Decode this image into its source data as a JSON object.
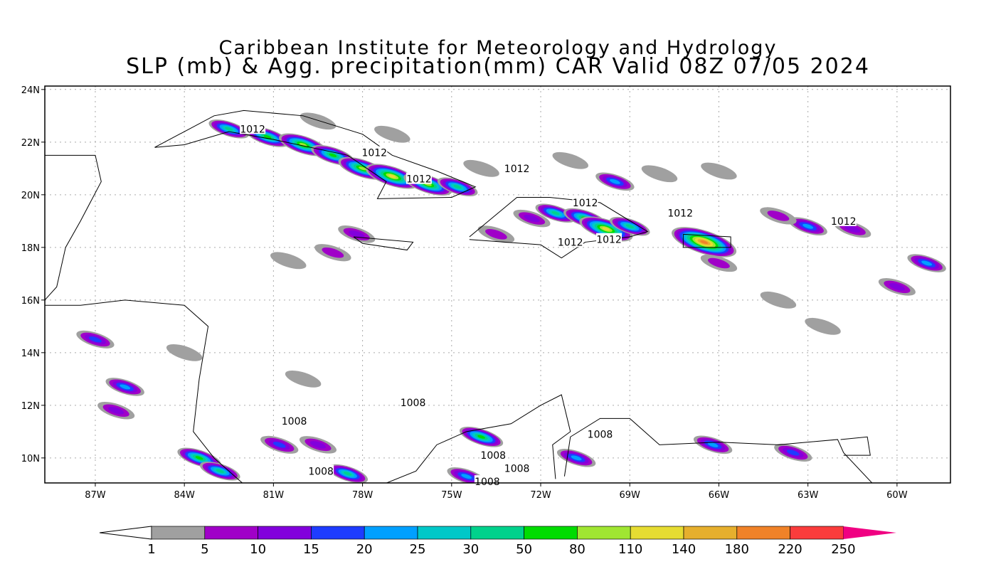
{
  "title_line1": "Caribbean Institute for Meteorology and Hydrology",
  "title_line2": "SLP (mb) & Agg. precipitation(mm) CAR Valid 08Z 07/05 2024",
  "map": {
    "lon_range": [
      -88.7,
      -58.2
    ],
    "lat_range": [
      9.05,
      24.13
    ],
    "lat_ticks": [
      {
        "v": 24,
        "label": "24N"
      },
      {
        "v": 22,
        "label": "22N"
      },
      {
        "v": 20,
        "label": "20N"
      },
      {
        "v": 18,
        "label": "18N"
      },
      {
        "v": 16,
        "label": "16N"
      },
      {
        "v": 14,
        "label": "14N"
      },
      {
        "v": 12,
        "label": "12N"
      },
      {
        "v": 10,
        "label": "10N"
      }
    ],
    "lon_ticks": [
      {
        "v": -87,
        "label": "87W"
      },
      {
        "v": -84,
        "label": "84W"
      },
      {
        "v": -81,
        "label": "81W"
      },
      {
        "v": -78,
        "label": "78W"
      },
      {
        "v": -75,
        "label": "75W"
      },
      {
        "v": -72,
        "label": "72W"
      },
      {
        "v": -69,
        "label": "69W"
      },
      {
        "v": -66,
        "label": "66W"
      },
      {
        "v": -63,
        "label": "63W"
      },
      {
        "v": -60,
        "label": "60W"
      }
    ],
    "isobar_labels": [
      {
        "text": "1012",
        "lon": -81.7,
        "lat": 22.5
      },
      {
        "text": "1012",
        "lon": -77.6,
        "lat": 21.6
      },
      {
        "text": "1012",
        "lon": -76.1,
        "lat": 20.6
      },
      {
        "text": "1012",
        "lon": -72.8,
        "lat": 21.0
      },
      {
        "text": "1012",
        "lon": -70.5,
        "lat": 19.7
      },
      {
        "text": "1012",
        "lon": -67.3,
        "lat": 19.3
      },
      {
        "text": "1012",
        "lon": -61.8,
        "lat": 19.0
      },
      {
        "text": "1012",
        "lon": -71.0,
        "lat": 18.2
      },
      {
        "text": "1012",
        "lon": -69.7,
        "lat": 18.3
      },
      {
        "text": "1008",
        "lon": -80.3,
        "lat": 11.4
      },
      {
        "text": "1008",
        "lon": -76.3,
        "lat": 12.1
      },
      {
        "text": "1008",
        "lon": -79.4,
        "lat": 9.5
      },
      {
        "text": "1008",
        "lon": -73.6,
        "lat": 10.1
      },
      {
        "text": "1008",
        "lon": -72.8,
        "lat": 9.6
      },
      {
        "text": "1008",
        "lon": -73.8,
        "lat": 9.1
      },
      {
        "text": "1008",
        "lon": -70.0,
        "lat": 10.9
      }
    ],
    "rain_cells": [
      {
        "lon": -82.5,
        "lat": 22.5,
        "mm": 30
      },
      {
        "lon": -81.2,
        "lat": 22.2,
        "mm": 50
      },
      {
        "lon": -80.0,
        "lat": 21.9,
        "mm": 80
      },
      {
        "lon": -79.0,
        "lat": 21.5,
        "mm": 50
      },
      {
        "lon": -78.0,
        "lat": 21.0,
        "mm": 80
      },
      {
        "lon": -77.0,
        "lat": 20.7,
        "mm": 110
      },
      {
        "lon": -75.8,
        "lat": 20.4,
        "mm": 80
      },
      {
        "lon": -74.8,
        "lat": 20.3,
        "mm": 30
      },
      {
        "lon": -79.5,
        "lat": 22.8,
        "mm": 3
      },
      {
        "lon": -77.0,
        "lat": 22.3,
        "mm": 3
      },
      {
        "lon": -74.0,
        "lat": 21.0,
        "mm": 3
      },
      {
        "lon": -71.0,
        "lat": 21.3,
        "mm": 3
      },
      {
        "lon": -69.5,
        "lat": 20.5,
        "mm": 20
      },
      {
        "lon": -68.0,
        "lat": 20.8,
        "mm": 3
      },
      {
        "lon": -66.0,
        "lat": 20.9,
        "mm": 3
      },
      {
        "lon": -71.5,
        "lat": 19.3,
        "mm": 30
      },
      {
        "lon": -70.5,
        "lat": 19.1,
        "mm": 50
      },
      {
        "lon": -69.8,
        "lat": 18.7,
        "mm": 110
      },
      {
        "lon": -69.0,
        "lat": 18.8,
        "mm": 30
      },
      {
        "lon": -72.3,
        "lat": 19.1,
        "mm": 10
      },
      {
        "lon": -73.5,
        "lat": 18.5,
        "mm": 7
      },
      {
        "lon": -66.5,
        "lat": 18.2,
        "mm": 180
      },
      {
        "lon": -63.0,
        "lat": 18.8,
        "mm": 20
      },
      {
        "lon": -61.5,
        "lat": 18.7,
        "mm": 10
      },
      {
        "lon": -64.0,
        "lat": 19.2,
        "mm": 7
      },
      {
        "lon": -59.0,
        "lat": 17.4,
        "mm": 20
      },
      {
        "lon": -60.0,
        "lat": 16.5,
        "mm": 10
      },
      {
        "lon": -78.2,
        "lat": 18.5,
        "mm": 10
      },
      {
        "lon": -80.5,
        "lat": 17.5,
        "mm": 3
      },
      {
        "lon": -79.0,
        "lat": 17.8,
        "mm": 7
      },
      {
        "lon": -86.0,
        "lat": 12.7,
        "mm": 20
      },
      {
        "lon": -86.3,
        "lat": 11.8,
        "mm": 10
      },
      {
        "lon": -87.0,
        "lat": 14.5,
        "mm": 15
      },
      {
        "lon": -83.5,
        "lat": 10.0,
        "mm": 50
      },
      {
        "lon": -82.8,
        "lat": 9.5,
        "mm": 30
      },
      {
        "lon": -80.8,
        "lat": 10.5,
        "mm": 15
      },
      {
        "lon": -79.5,
        "lat": 10.5,
        "mm": 10
      },
      {
        "lon": -78.5,
        "lat": 9.4,
        "mm": 30
      },
      {
        "lon": -74.0,
        "lat": 10.8,
        "mm": 50
      },
      {
        "lon": -74.5,
        "lat": 9.3,
        "mm": 20
      },
      {
        "lon": -70.8,
        "lat": 10.0,
        "mm": 20
      },
      {
        "lon": -66.2,
        "lat": 10.5,
        "mm": 20
      },
      {
        "lon": -63.5,
        "lat": 10.2,
        "mm": 15
      },
      {
        "lon": -84.0,
        "lat": 14.0,
        "mm": 3
      },
      {
        "lon": -80.0,
        "lat": 13.0,
        "mm": 3
      },
      {
        "lon": -62.5,
        "lat": 15.0,
        "mm": 3
      },
      {
        "lon": -64.0,
        "lat": 16.0,
        "mm": 3
      },
      {
        "lon": -66.0,
        "lat": 17.4,
        "mm": 7
      }
    ]
  },
  "colorbar": {
    "labels": [
      "1",
      "5",
      "10",
      "15",
      "20",
      "25",
      "30",
      "50",
      "80",
      "110",
      "140",
      "180",
      "220",
      "250"
    ],
    "colors": [
      "#a0a0a0",
      "#a000c8",
      "#8200dc",
      "#1e3cff",
      "#00a0ff",
      "#00c8c8",
      "#00d28c",
      "#00dc00",
      "#a0e632",
      "#e6dc32",
      "#e6af2d",
      "#f08228",
      "#fa3c3c"
    ],
    "over_color": "#f00082"
  }
}
